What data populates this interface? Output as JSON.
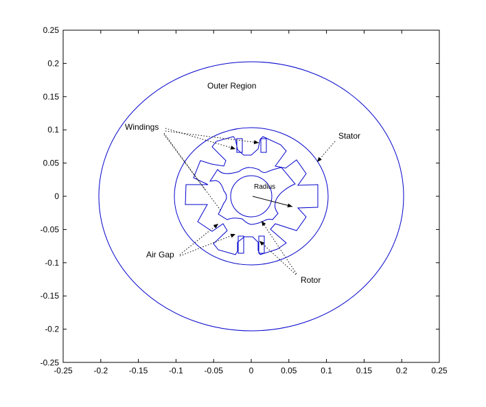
{
  "axes": {
    "xlim": [
      -0.25,
      0.25
    ],
    "ylim": [
      -0.25,
      0.25
    ],
    "x_ticks": [
      "-0.25",
      "-0.2",
      "-0.15",
      "-0.1",
      "-0.05",
      "0",
      "0.05",
      "0.1",
      "0.15",
      "0.2",
      "0.25"
    ],
    "y_ticks": [
      "0.25",
      "0.2",
      "0.15",
      "0.1",
      "0.05",
      "0",
      "-0.05",
      "-0.1",
      "-0.15",
      "-0.2",
      "-0.25"
    ]
  },
  "annotations": {
    "outer_region": "Outer Region",
    "windings": "Windings",
    "stator": "Stator",
    "radius": "Radius",
    "air_gap": "Air Gap",
    "rotor": "Rotor"
  },
  "colors": {
    "geometry": "#0000cc",
    "annotation": "#000000"
  }
}
